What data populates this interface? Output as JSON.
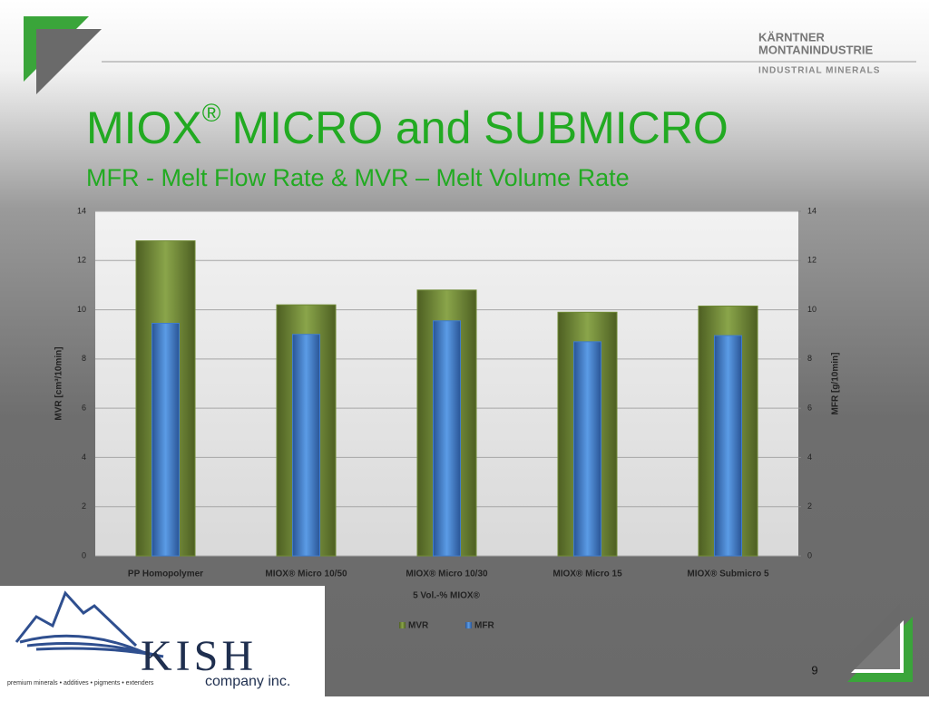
{
  "brand": {
    "line1": "KÄRNTNER",
    "line2": "MONTANINDUSTRIE",
    "line3": "INDUSTRIAL MINERALS"
  },
  "heading": {
    "title_main": "MIOX",
    "title_mark": "®",
    "title_rest": "MICRO and SUBMICRO",
    "subtitle": "MFR - Melt Flow Rate & MVR – Melt Volume Rate"
  },
  "chart_data": {
    "type": "bar",
    "categories": [
      "PP Homopolymer",
      "MIOX® Micro 10/50",
      "MIOX® Micro 10/30",
      "MIOX® Micro 15",
      "MIOX® Submicro 5"
    ],
    "series": [
      {
        "name": "MVR",
        "color": "#6f8a35",
        "values": [
          12.8,
          10.2,
          10.8,
          9.9,
          10.15
        ]
      },
      {
        "name": "MFR",
        "color": "#3f7ccc",
        "axis": "y2",
        "values": [
          9.45,
          9.0,
          9.55,
          8.7,
          8.95
        ]
      }
    ],
    "x_label": "5 Vol.-% MIOX®",
    "y_label": "MVR  [cm³/10min]",
    "y2_label": "MFR [g/10min]",
    "ylim": [
      0,
      14
    ],
    "yticks": [
      0,
      2,
      4,
      6,
      8,
      10,
      12,
      14
    ],
    "y2lim": [
      0,
      14
    ],
    "y2ticks": [
      0,
      2,
      4,
      6,
      8,
      10,
      12,
      14
    ],
    "grid": true,
    "legend": "bottom"
  },
  "logo": {
    "name": "KISH",
    "suffix": "company inc.",
    "tagline": "premium minerals • additives • pigments • extenders"
  },
  "page_number": "9"
}
